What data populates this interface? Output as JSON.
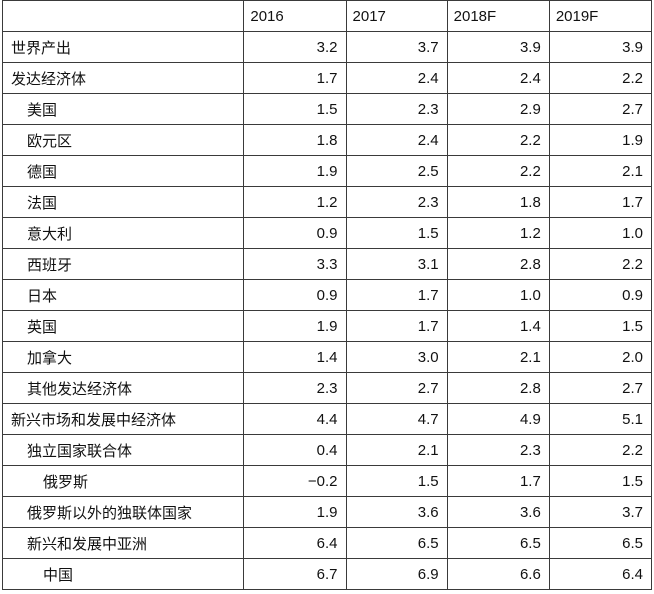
{
  "table": {
    "headers": [
      "",
      "2016",
      "2017",
      "2018F",
      "2019F"
    ],
    "rows": [
      {
        "label": "世界产出",
        "level": 0,
        "values": [
          "3.2",
          "3.7",
          "3.9",
          "3.9"
        ]
      },
      {
        "label": "发达经济体",
        "level": 0,
        "values": [
          "1.7",
          "2.4",
          "2.4",
          "2.2"
        ]
      },
      {
        "label": "美国",
        "level": 1,
        "values": [
          "1.5",
          "2.3",
          "2.9",
          "2.7"
        ]
      },
      {
        "label": "欧元区",
        "level": 1,
        "values": [
          "1.8",
          "2.4",
          "2.2",
          "1.9"
        ]
      },
      {
        "label": "德国",
        "level": 1,
        "values": [
          "1.9",
          "2.5",
          "2.2",
          "2.1"
        ]
      },
      {
        "label": "法国",
        "level": 1,
        "values": [
          "1.2",
          "2.3",
          "1.8",
          "1.7"
        ]
      },
      {
        "label": "意大利",
        "level": 1,
        "values": [
          "0.9",
          "1.5",
          "1.2",
          "1.0"
        ]
      },
      {
        "label": "西班牙",
        "level": 1,
        "values": [
          "3.3",
          "3.1",
          "2.8",
          "2.2"
        ]
      },
      {
        "label": "日本",
        "level": 1,
        "values": [
          "0.9",
          "1.7",
          "1.0",
          "0.9"
        ]
      },
      {
        "label": "英国",
        "level": 1,
        "values": [
          "1.9",
          "1.7",
          "1.4",
          "1.5"
        ]
      },
      {
        "label": "加拿大",
        "level": 1,
        "values": [
          "1.4",
          "3.0",
          "2.1",
          "2.0"
        ]
      },
      {
        "label": "其他发达经济体",
        "level": 1,
        "values": [
          "2.3",
          "2.7",
          "2.8",
          "2.7"
        ]
      },
      {
        "label": "新兴市场和发展中经济体",
        "level": 0,
        "values": [
          "4.4",
          "4.7",
          "4.9",
          "5.1"
        ]
      },
      {
        "label": "独立国家联合体",
        "level": 1,
        "values": [
          "0.4",
          "2.1",
          "2.3",
          "2.2"
        ]
      },
      {
        "label": "俄罗斯",
        "level": 2,
        "values": [
          "−0.2",
          "1.5",
          "1.7",
          "1.5"
        ]
      },
      {
        "label": "俄罗斯以外的独联体国家",
        "level": 1,
        "values": [
          "1.9",
          "3.6",
          "3.6",
          "3.7"
        ]
      },
      {
        "label": "新兴和发展中亚洲",
        "level": 1,
        "values": [
          "6.4",
          "6.5",
          "6.5",
          "6.5"
        ]
      },
      {
        "label": "中国",
        "level": 2,
        "values": [
          "6.7",
          "6.9",
          "6.6",
          "6.4"
        ]
      }
    ]
  }
}
